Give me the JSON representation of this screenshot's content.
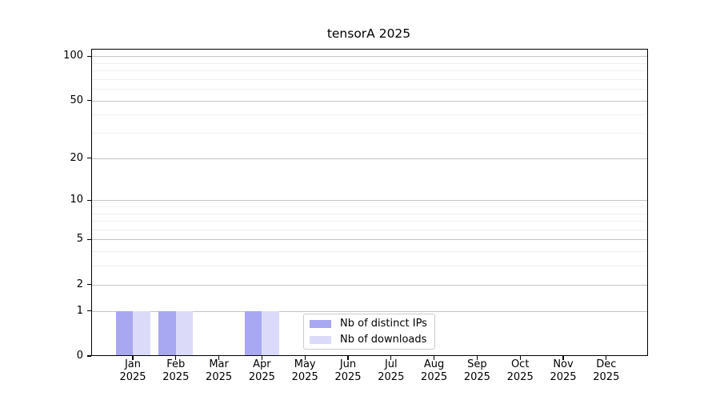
{
  "chart": {
    "title": "tensorA 2025",
    "chart_data": {
      "type": "bar",
      "title": "tensorA 2025",
      "categories": [
        "Jan",
        "Feb",
        "Mar",
        "Apr",
        "May",
        "Jun",
        "Jul",
        "Aug",
        "Sep",
        "Oct",
        "Nov",
        "Dec"
      ],
      "x_year_label": "2025",
      "series": [
        {
          "name": "Nb of distinct IPs",
          "color": "#a7a7f2",
          "values": [
            1,
            1,
            0,
            1,
            0,
            0,
            0,
            0,
            0,
            0,
            0,
            0
          ]
        },
        {
          "name": "Nb of downloads",
          "color": "#dbdbf9",
          "values": [
            1,
            1,
            0,
            1,
            0,
            0,
            0,
            0,
            0,
            0,
            0,
            0
          ]
        }
      ],
      "y_axis": {
        "scale": "log1p",
        "major_ticks": [
          0,
          1,
          2,
          5,
          10,
          20,
          50,
          100
        ],
        "minor_ticks": [
          3,
          4,
          6,
          7,
          8,
          9,
          30,
          40,
          60,
          70,
          80,
          90
        ],
        "ylim": [
          0,
          112
        ]
      },
      "grid": "both",
      "legend_position": "lower center"
    },
    "colors": {
      "grid_major": "#c4c4c4",
      "grid_minor": "#efefef",
      "axis": "#000000",
      "text": "#000000",
      "background": "#ffffff"
    }
  }
}
